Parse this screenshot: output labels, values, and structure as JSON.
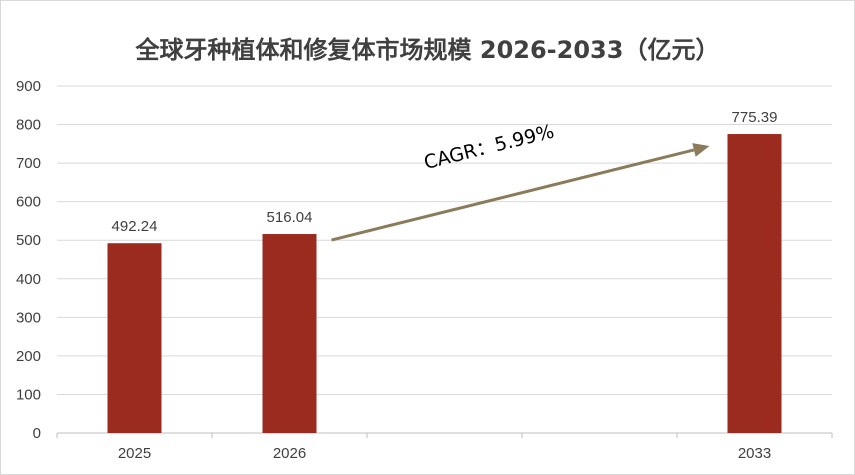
{
  "chart_data": {
    "type": "bar",
    "title": "全球牙种植体和修复体市场规模 2026-2033（亿元）",
    "categories": [
      "2025",
      "2026",
      "",
      "",
      "2033"
    ],
    "values": [
      492.24,
      516.04,
      null,
      null,
      775.39
    ],
    "data_labels": [
      "492.24",
      "516.04",
      "",
      "",
      "775.39"
    ],
    "y_ticks": [
      "0",
      "100",
      "200",
      "300",
      "400",
      "500",
      "600",
      "700",
      "800",
      "900"
    ],
    "ylim": [
      0,
      900
    ],
    "xlabel": "",
    "ylabel": "",
    "grid": true,
    "bar_color": "#9b2a1f",
    "arrow_color": "#8c7b5a",
    "annotation": {
      "text": "CAGR：5.99%",
      "from_category": "2026",
      "to_category": "2033"
    }
  }
}
